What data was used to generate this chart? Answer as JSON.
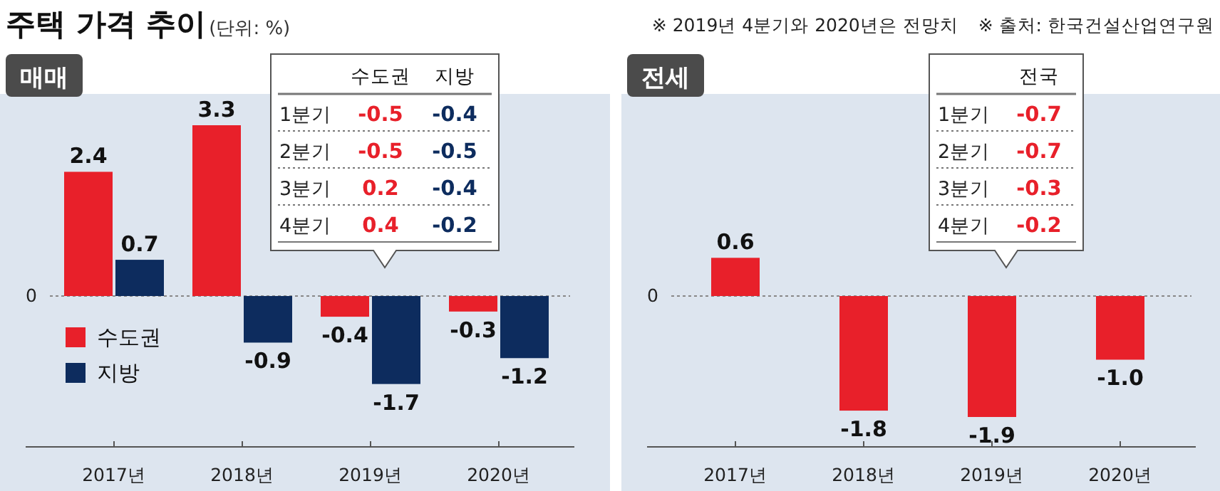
{
  "chart_data": [
    {
      "type": "other",
      "title": "주택 가격 추이",
      "subtitle": "(단위: %)",
      "annotations": [
        "※ 2019년 4분기와 2020년은 전망치",
        "※ 출처: 한국건설산업연구원"
      ]
    },
    {
      "type": "bar",
      "title": "매매",
      "categories": [
        "2017년",
        "2018년",
        "2019년",
        "2020년"
      ],
      "series": [
        {
          "name": "수도권",
          "color": "#e8202a",
          "values": [
            2.4,
            3.3,
            -0.4,
            -0.3
          ]
        },
        {
          "name": "지방",
          "color": "#0d2c5e",
          "values": [
            0.7,
            -0.9,
            -1.7,
            -1.2
          ]
        }
      ],
      "data_labels": true,
      "legend": "left",
      "ref_lines": [
        {
          "axis": "y",
          "value": 0,
          "label": "0"
        }
      ],
      "annotations": [
        "수도권",
        "지방",
        "1분기",
        "-0.5",
        "-0.4",
        "2분기",
        "-0.5",
        "-0.5",
        "3분기",
        "0.2",
        "-0.4",
        "4분기",
        "0.4",
        "-0.2"
      ]
    },
    {
      "type": "bar",
      "title": "전세",
      "categories": [
        "2017년",
        "2018년",
        "2019년",
        "2020년"
      ],
      "series": [
        {
          "color": "#e8202a",
          "values": [
            0.6,
            -1.8,
            -1.9,
            -1.0
          ],
          "value_labels": [
            "0.6",
            "-1.8",
            "-1.9",
            "-1.0"
          ]
        }
      ],
      "legend": false,
      "ref_lines": [
        {
          "axis": "y",
          "value": 0,
          "label": "0"
        }
      ],
      "annotations": [
        "전국",
        "1분기",
        "-0.7",
        "2분기",
        "-0.7",
        "3분기",
        "-0.3",
        "4분기",
        "-0.2"
      ]
    }
  ]
}
